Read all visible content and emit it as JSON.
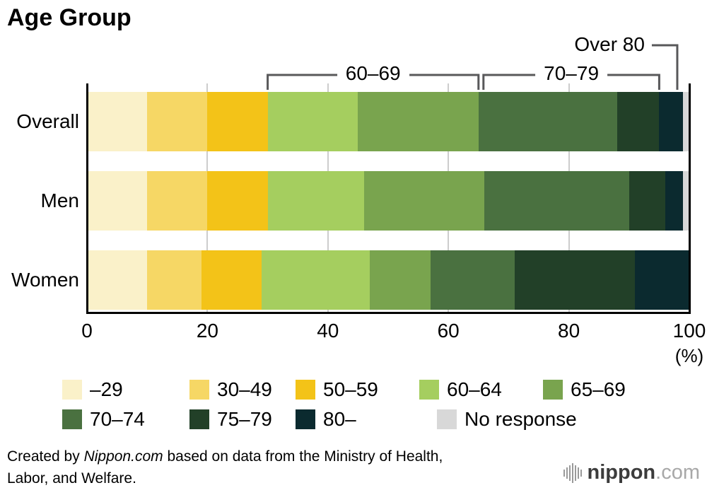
{
  "chart_data": {
    "type": "bar",
    "stacked": true,
    "orientation": "horizontal",
    "title": "Age Group",
    "unit": "(%)",
    "categories": [
      "Overall",
      "Men",
      "Women"
    ],
    "xlim": [
      0,
      100
    ],
    "xticks": [
      0,
      20,
      40,
      60,
      80,
      100
    ],
    "grid": true,
    "legend_position": "bottom",
    "series": [
      {
        "name": "–29",
        "color": "#FAF1C9",
        "values": [
          10,
          10,
          10
        ]
      },
      {
        "name": "30–49",
        "color": "#F6D765",
        "values": [
          10,
          10,
          9
        ]
      },
      {
        "name": "50–59",
        "color": "#F3C318",
        "values": [
          10,
          10,
          10
        ]
      },
      {
        "name": "60–64",
        "color": "#A5CE5F",
        "values": [
          15,
          16,
          18
        ]
      },
      {
        "name": "65–69",
        "color": "#79A44E",
        "values": [
          20,
          20,
          10
        ]
      },
      {
        "name": "70–74",
        "color": "#4A7140",
        "values": [
          23,
          24,
          14
        ]
      },
      {
        "name": "75–79",
        "color": "#224028",
        "values": [
          7,
          6,
          20
        ]
      },
      {
        "name": "80–",
        "color": "#0B2A2F",
        "values": [
          4,
          3,
          9
        ]
      },
      {
        "name": "No response",
        "color": "#D8D8D8",
        "values": [
          1,
          1,
          0
        ]
      }
    ],
    "annotations": [
      {
        "type": "bracket",
        "label": "60–69",
        "from": 30,
        "to": 65
      },
      {
        "type": "bracket",
        "label": "70–79",
        "from": 65,
        "to": 95
      },
      {
        "type": "pointer",
        "label": "Over 80",
        "at": 98
      }
    ]
  },
  "legend": {
    "rows": [
      [
        "–29",
        "30–49",
        "50–59",
        "60–64",
        "65–69"
      ],
      [
        "70–74",
        "75–79",
        "80–",
        "No response"
      ]
    ]
  },
  "footer": {
    "parts": [
      {
        "text": "Created by "
      },
      {
        "text": "Nippon.com",
        "italic": true
      },
      {
        "text": " based on data from the Ministry of Health, Labor, and Welfare."
      }
    ]
  },
  "logo": {
    "name": "nippon",
    "tld": ".com"
  }
}
